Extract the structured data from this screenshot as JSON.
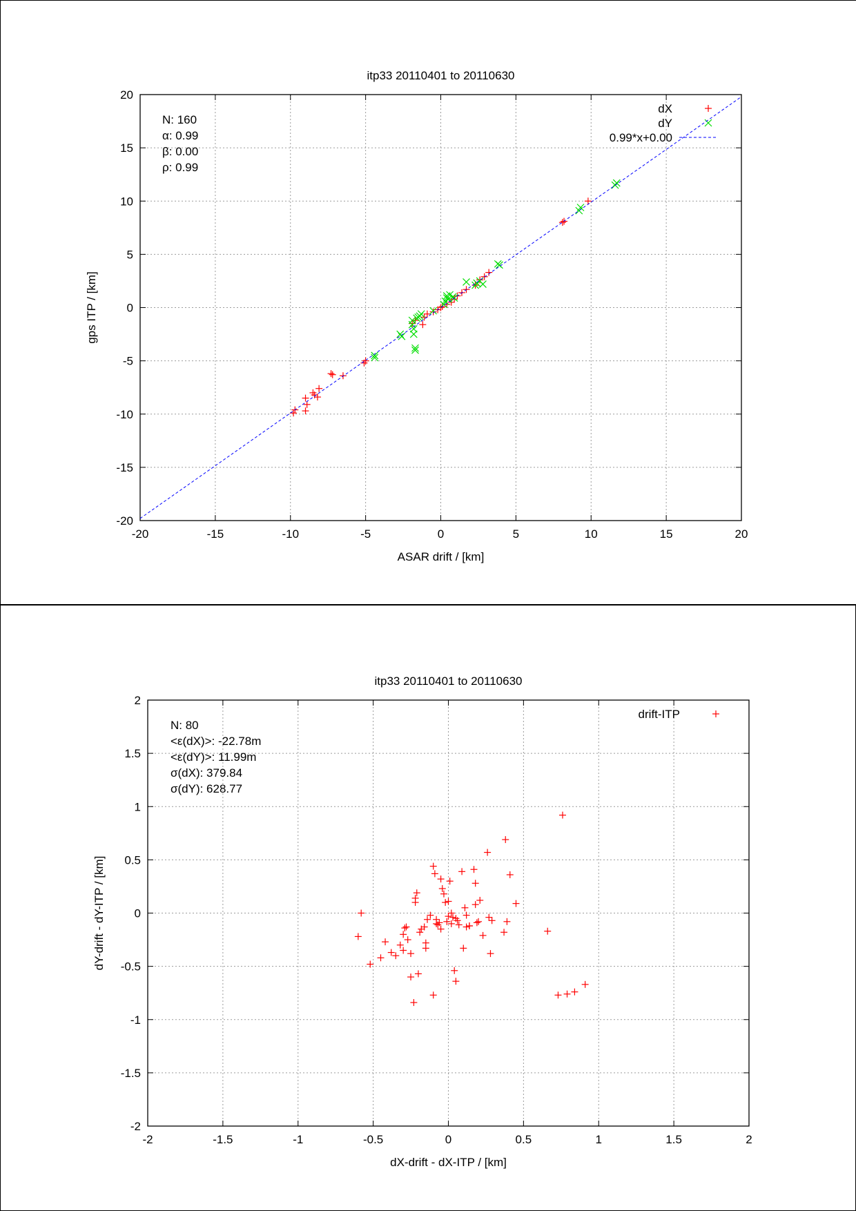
{
  "chart_data": [
    {
      "type": "scatter",
      "title": "itp33 20110401 to 20110630",
      "xlabel": "ASAR drift / [km]",
      "ylabel": "gps ITP / [km]",
      "xlim": [
        -20,
        20
      ],
      "ylim": [
        -20,
        20
      ],
      "xticks": [
        "-20",
        "-15",
        "-10",
        "-5",
        "0",
        "5",
        "10",
        "15",
        "20"
      ],
      "yticks": [
        "-20",
        "-15",
        "-10",
        "-5",
        "0",
        "5",
        "10",
        "15",
        "20"
      ],
      "grid": true,
      "legend_position": "top-right",
      "stats": [
        "N: 160",
        "α: 0.99",
        "β: 0.00",
        "ρ: 0.99"
      ],
      "series": [
        {
          "name": "dX",
          "marker": "+",
          "color": "#ff0000",
          "x": [
            -9.8,
            -9.7,
            -9.0,
            -9.0,
            -8.9,
            -8.5,
            -8.4,
            -8.2,
            -8.1,
            -7.3,
            -7.2,
            -6.5,
            -5.1,
            -5.0,
            -1.9,
            -1.7,
            -1.2,
            -1.1,
            -0.9,
            -0.5,
            -0.2,
            0.0,
            0.1,
            0.4,
            0.7,
            0.9,
            1.1,
            1.4,
            1.7,
            2.3,
            2.6,
            2.9,
            3.2,
            8.1,
            8.2,
            9.8
          ],
          "y": [
            -9.9,
            -9.6,
            -9.7,
            -8.5,
            -9.1,
            -8.0,
            -8.2,
            -8.4,
            -7.6,
            -6.2,
            -6.3,
            -6.4,
            -5.2,
            -5.0,
            -1.5,
            -1.2,
            -1.6,
            -0.9,
            -0.6,
            -0.4,
            -0.2,
            0.0,
            0.1,
            0.3,
            0.5,
            0.8,
            1.1,
            1.4,
            1.7,
            2.1,
            2.6,
            2.9,
            3.3,
            8.0,
            8.1,
            10.0
          ]
        },
        {
          "name": "dY",
          "marker": "x",
          "color": "#00dd00",
          "x": [
            -4.4,
            -4.4,
            -2.7,
            -2.6,
            -1.9,
            -1.9,
            -1.8,
            -1.8,
            -1.7,
            -1.7,
            -1.6,
            -1.5,
            -1.4,
            -1.3,
            -0.5,
            0.2,
            0.3,
            0.4,
            0.4,
            0.5,
            0.6,
            0.8,
            0.9,
            1.7,
            2.3,
            2.4,
            2.6,
            2.8,
            3.8,
            3.9,
            9.2,
            9.3,
            11.6,
            11.7
          ],
          "y": [
            -4.5,
            -4.7,
            -2.5,
            -2.7,
            -1.6,
            -1.2,
            -2.0,
            -2.5,
            -3.8,
            -4.0,
            -1.0,
            -0.9,
            -0.8,
            -0.6,
            -0.3,
            0.3,
            0.6,
            0.9,
            1.1,
            0.8,
            1.2,
            1.0,
            0.9,
            2.4,
            2.1,
            2.3,
            2.5,
            2.2,
            4.1,
            4.0,
            9.1,
            9.4,
            11.5,
            11.7
          ]
        },
        {
          "name": "0.99*x+0.00",
          "type": "line",
          "dashed": true,
          "color": "#0000ff",
          "slope": 0.99,
          "intercept": 0.0
        }
      ]
    },
    {
      "type": "scatter",
      "title": "itp33 20110401 to 20110630",
      "xlabel": "dX-drift - dX-ITP / [km]",
      "ylabel": "dY-drift - dY-ITP / [km]",
      "xlim": [
        -2,
        2
      ],
      "ylim": [
        -2,
        2
      ],
      "xticks": [
        "-2",
        "-1.5",
        "-1",
        "-0.5",
        "0",
        "0.5",
        "1",
        "1.5",
        "2"
      ],
      "yticks": [
        "-2",
        "-1.5",
        "-1",
        "-0.5",
        "0",
        "0.5",
        "1",
        "1.5",
        "2"
      ],
      "grid": true,
      "legend_position": "top-right",
      "stats": [
        "N: 80",
        "<ε(dX)>:  -22.78m",
        "<ε(dY)>: 11.99m",
        "σ(dX):  379.84",
        "σ(dY):  628.77"
      ],
      "series": [
        {
          "name": "drift-ITP",
          "marker": "+",
          "color": "#ff0000",
          "x": [
            -0.6,
            -0.58,
            -0.52,
            -0.45,
            -0.42,
            -0.38,
            -0.35,
            -0.32,
            -0.3,
            -0.29,
            -0.28,
            -0.27,
            -0.25,
            -0.25,
            -0.23,
            -0.22,
            -0.21,
            -0.2,
            -0.19,
            -0.18,
            -0.15,
            -0.12,
            -0.1,
            -0.1,
            -0.09,
            -0.08,
            -0.07,
            -0.06,
            -0.05,
            -0.04,
            -0.03,
            -0.02,
            -0.01,
            0.0,
            0.01,
            0.02,
            0.03,
            0.04,
            0.05,
            0.06,
            0.07,
            0.09,
            0.1,
            0.11,
            0.12,
            0.14,
            0.17,
            0.18,
            0.19,
            0.2,
            0.21,
            0.23,
            0.26,
            0.27,
            0.28,
            0.29,
            0.37,
            0.38,
            0.39,
            0.41,
            0.45,
            0.66,
            0.73,
            0.76,
            0.79,
            0.84,
            0.91,
            -0.16,
            -0.14,
            0.12,
            -0.05,
            0.05,
            -0.3,
            -0.22,
            -0.15,
            0.02,
            0.14,
            -0.08,
            0.18,
            0.0
          ],
          "y": [
            -0.22,
            0.0,
            -0.48,
            -0.42,
            -0.27,
            -0.37,
            -0.4,
            -0.3,
            -0.2,
            -0.14,
            -0.13,
            -0.25,
            -0.38,
            -0.6,
            -0.84,
            0.1,
            0.19,
            -0.57,
            -0.18,
            -0.15,
            -0.33,
            -0.02,
            0.44,
            -0.77,
            0.37,
            -0.06,
            -0.11,
            -0.09,
            0.32,
            0.23,
            0.18,
            0.1,
            -0.08,
            0.11,
            0.3,
            -0.1,
            -0.04,
            -0.54,
            -0.64,
            -0.07,
            -0.11,
            0.39,
            -0.33,
            0.05,
            -0.02,
            -0.12,
            0.41,
            0.28,
            -0.09,
            -0.08,
            0.12,
            -0.21,
            0.57,
            -0.04,
            -0.38,
            -0.07,
            -0.18,
            0.69,
            -0.08,
            0.36,
            0.09,
            -0.17,
            -0.77,
            0.92,
            -0.76,
            -0.74,
            -0.67,
            -0.13,
            -0.06,
            -0.13,
            -0.15,
            -0.05,
            -0.35,
            0.14,
            -0.28,
            0.0,
            -0.12,
            -0.1,
            0.08,
            -0.03
          ]
        }
      ]
    }
  ]
}
